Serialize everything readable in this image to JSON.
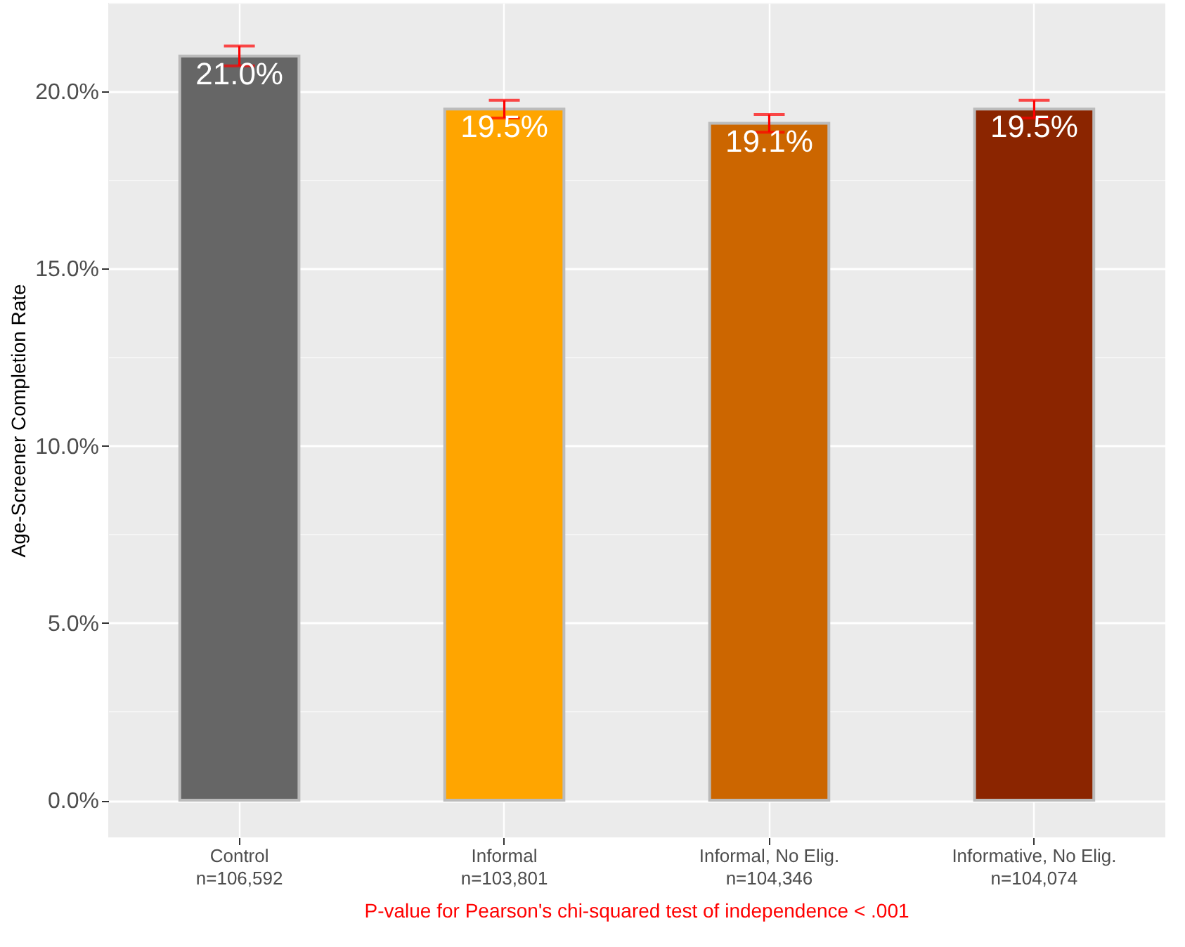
{
  "chart_data": {
    "type": "bar",
    "ylabel": "Age-Screener Completion Rate",
    "categories": [
      "Control\nn=106,592",
      "Informal\nn=103,801",
      "Informal, No Elig.\nn=104,346",
      "Informative, No Elig.\nn=104,074"
    ],
    "values": [
      21.0,
      19.5,
      19.1,
      19.5
    ],
    "colors": [
      "#666666",
      "#ffa500",
      "#cc6600",
      "#8b2500"
    ],
    "errors": [
      0.28,
      0.25,
      0.25,
      0.25
    ],
    "value_labels": [
      "21.0%",
      "19.5%",
      "19.1%",
      "19.5%"
    ],
    "ylim": [
      -1.05,
      22.5
    ],
    "yticks": [
      {
        "value": 0,
        "label": "0.0%"
      },
      {
        "value": 2.5,
        "label": null
      },
      {
        "value": 5,
        "label": "5.0%"
      },
      {
        "value": 7.5,
        "label": null
      },
      {
        "value": 10,
        "label": "10.0%"
      },
      {
        "value": 12.5,
        "label": null
      },
      {
        "value": 15,
        "label": "15.0%"
      },
      {
        "value": 17.5,
        "label": null
      },
      {
        "value": 20,
        "label": "20.0%"
      },
      {
        "value": 22.5,
        "label": null
      }
    ],
    "grid": true,
    "annotations": [
      "P-value for Pearson's chi-squared test of independence < .001"
    ]
  }
}
